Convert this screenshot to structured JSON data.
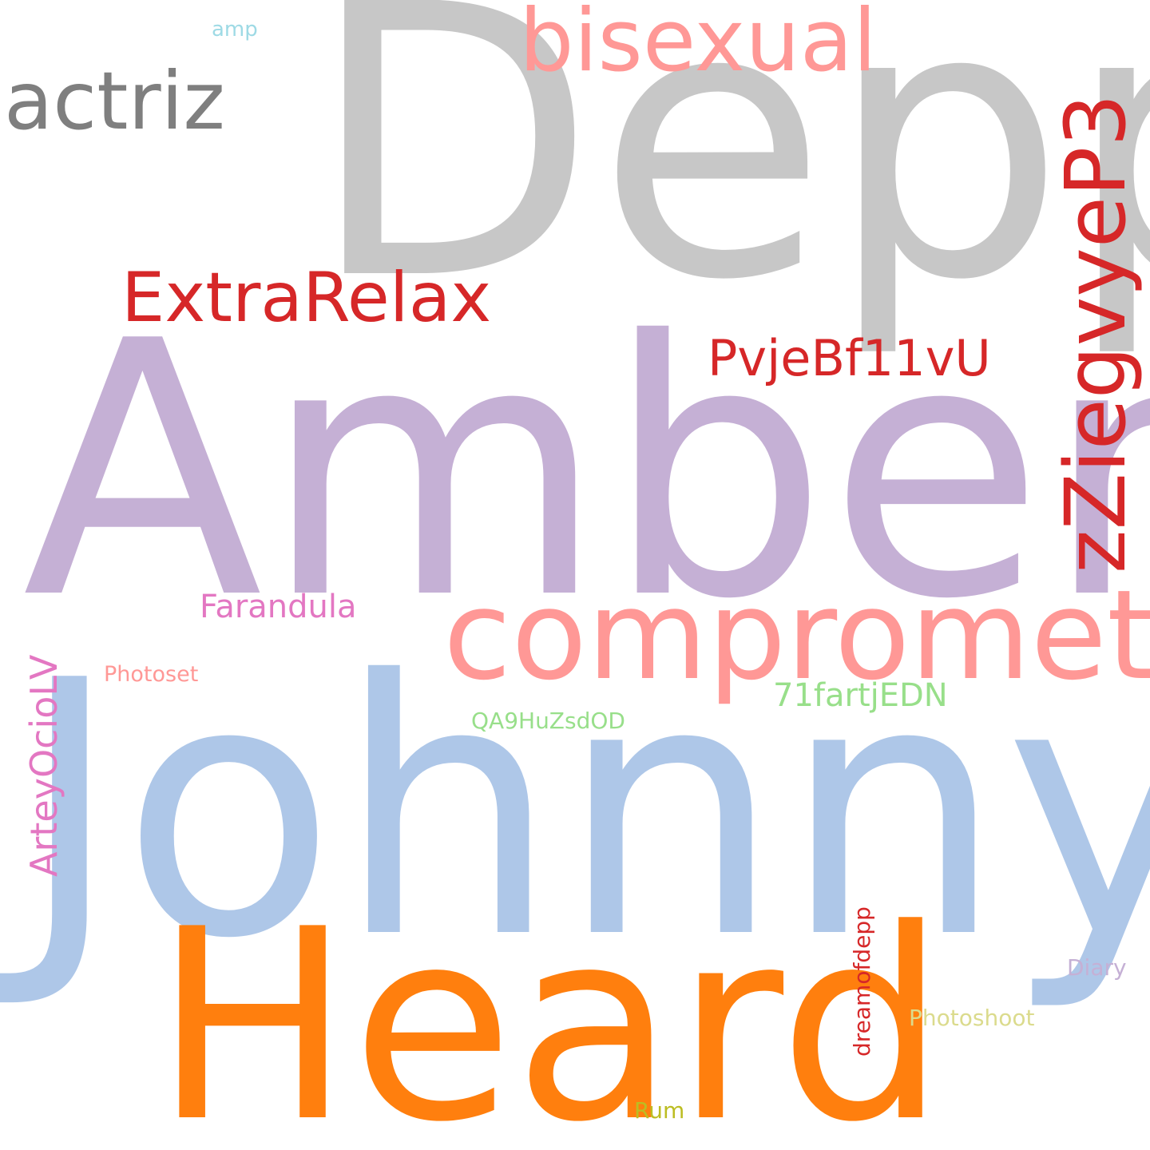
{
  "word_cloud": {
    "background": "#ffffff",
    "words": {
      "depp": {
        "text": "Depp",
        "color": "#c7c7c7"
      },
      "amber": {
        "text": "Amber",
        "color": "#c5b0d5"
      },
      "johnny": {
        "text": "Johnny",
        "color": "#aec7e8"
      },
      "heard": {
        "text": "Heard",
        "color": "#ff7f0e"
      },
      "compromete": {
        "text": "compromete",
        "color": "#ff9896"
      },
      "bisexual": {
        "text": "bisexual",
        "color": "#ff9896"
      },
      "actriz": {
        "text": "actriz",
        "color": "#7f7f7f"
      },
      "extrarelax": {
        "text": "ExtraRelax",
        "color": "#d62728"
      },
      "zziegvyep3": {
        "text": "zZiegvyeP3",
        "color": "#d62728"
      },
      "pvjebf11vu": {
        "text": "PvjeBf11vU",
        "color": "#d62728"
      },
      "arteyociolv": {
        "text": "ArteyOcioLV",
        "color": "#e377c2"
      },
      "farandula": {
        "text": "Farandula",
        "color": "#e377c2"
      },
      "fartjedn": {
        "text": "71fartjEDN",
        "color": "#98df8a"
      },
      "qa9huzsdod": {
        "text": "QA9HuZsdOD",
        "color": "#98df8a"
      },
      "photoset": {
        "text": "Photoset",
        "color": "#ff9896"
      },
      "dreamofdepp": {
        "text": "dreamofdepp",
        "color": "#d62728"
      },
      "diary": {
        "text": "Diary",
        "color": "#c5b0d5"
      },
      "photoshoot": {
        "text": "Photoshoot",
        "color": "#dbdb8d"
      },
      "rum": {
        "text": "Rum",
        "color": "#bcbd22"
      },
      "amp": {
        "text": "amp",
        "color": "#9edae5"
      }
    }
  }
}
